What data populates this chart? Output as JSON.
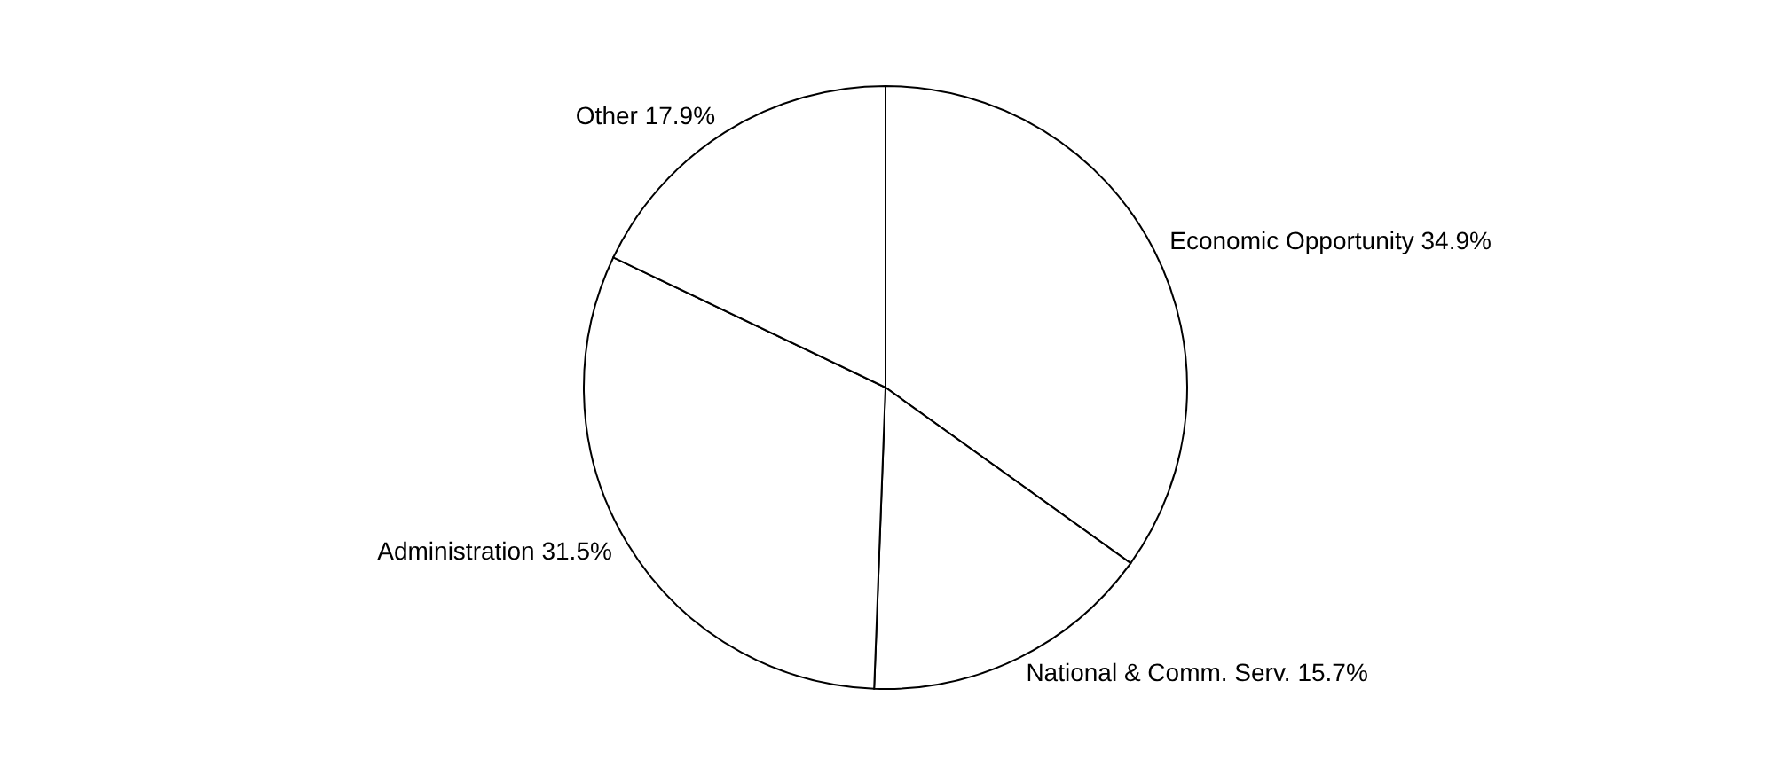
{
  "chart_data": {
    "type": "pie",
    "categories": [
      "Economic Opportunity",
      "National & Comm. Serv.",
      "Administration",
      "Other"
    ],
    "values": [
      34.9,
      15.7,
      31.5,
      17.9
    ],
    "value_labels": [
      "34.9%",
      "15.7%",
      "31.5%",
      "17.9%"
    ],
    "colors": [
      "#ffffff",
      "#ffffff",
      "#ffffff",
      "#ffffff"
    ]
  }
}
